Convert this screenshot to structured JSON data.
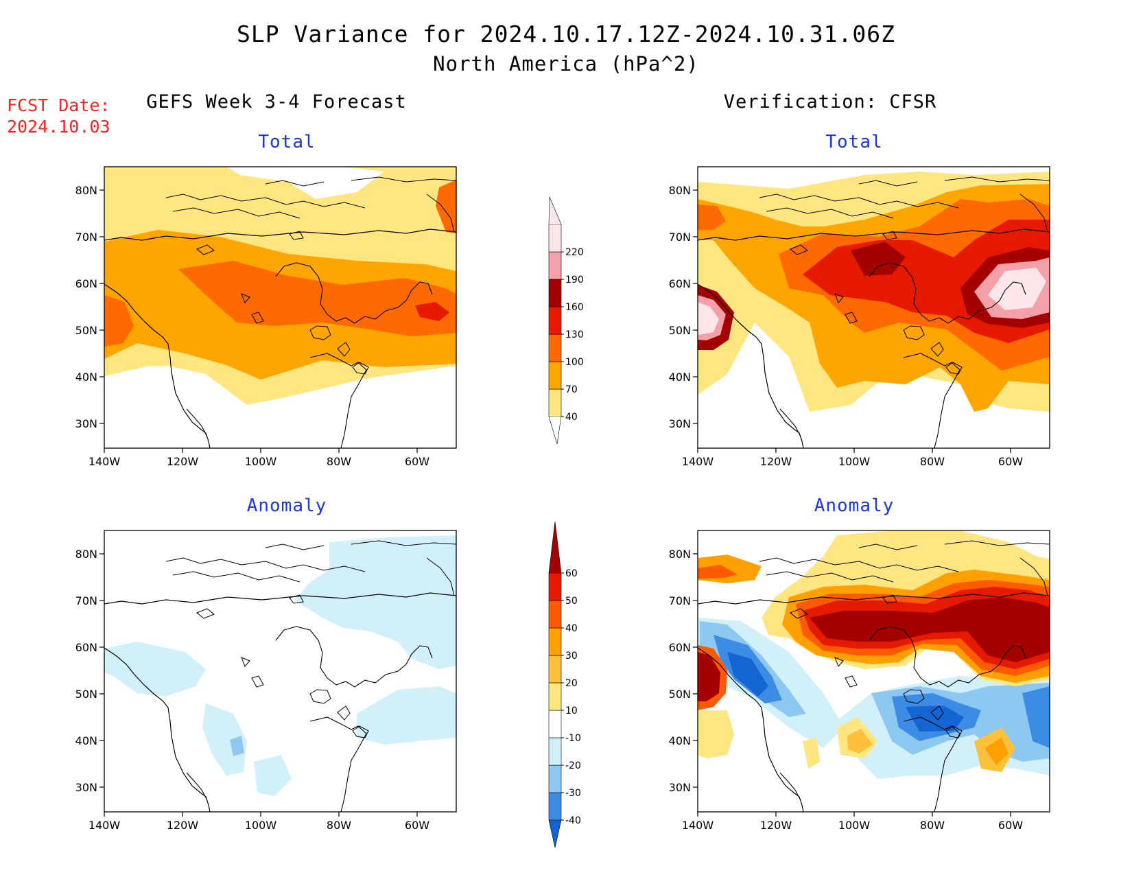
{
  "header": {
    "title": "SLP Variance for 2024.10.17.12Z-2024.10.31.06Z",
    "subtitle": "North America (hPa^2)",
    "fcst_label": "FCST Date:",
    "fcst_date": "2024.10.03"
  },
  "columns": {
    "left": "GEFS Week 3-4 Forecast",
    "right": "Verification: CFSR"
  },
  "panels": {
    "total_label": "Total",
    "anomaly_label": "Anomaly"
  },
  "axes": {
    "lat_labels": [
      "80N",
      "70N",
      "60N",
      "50N",
      "40N",
      "30N"
    ],
    "lon_labels": [
      "140W",
      "120W",
      "100W",
      "80W",
      "60W"
    ]
  },
  "colorbars": {
    "total": {
      "levels": [
        "40",
        "70",
        "100",
        "130",
        "160",
        "190",
        "220"
      ],
      "colors": [
        "#ffe680",
        "#ffa500",
        "#ff6a00",
        "#e61a00",
        "#a50000",
        "#f4a0a8",
        "#fde6ea"
      ]
    },
    "anomaly": {
      "levels": [
        "-40",
        "-30",
        "-20",
        "-10",
        "10",
        "20",
        "30",
        "40",
        "50",
        "60"
      ],
      "colors": [
        "#1464d2",
        "#3c8ce6",
        "#8cc8f0",
        "#d2f0fa",
        "#ffffff",
        "#ffe680",
        "#ffc03c",
        "#ffa000",
        "#ff5a00",
        "#e61a00",
        "#a50000"
      ]
    }
  }
}
